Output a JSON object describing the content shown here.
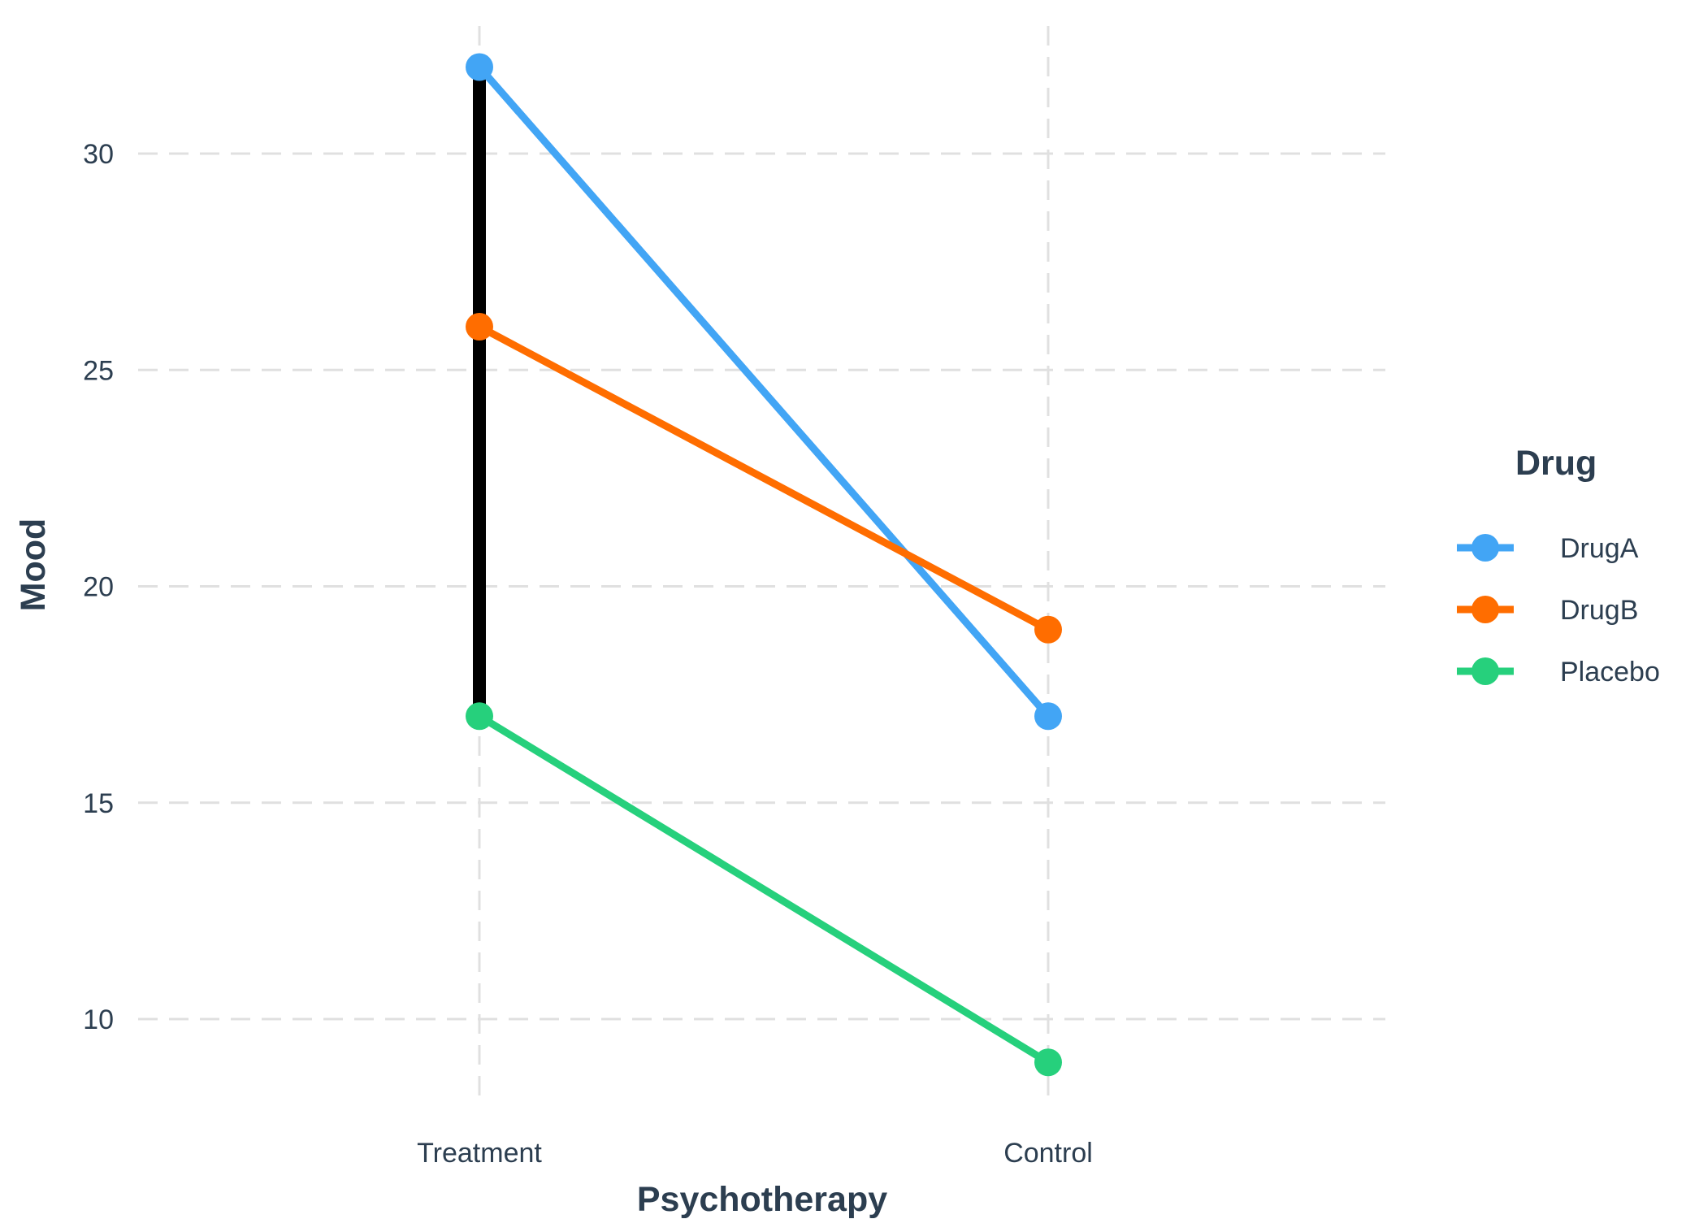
{
  "chart_data": {
    "type": "line",
    "xlabel": "Psychotherapy",
    "ylabel": "Mood",
    "categories": [
      "Treatment",
      "Control"
    ],
    "ylim": [
      7.5,
      33
    ],
    "yticks": [
      10,
      15,
      20,
      25,
      30
    ],
    "grid": true,
    "legend": {
      "title": "Drug",
      "position": "right"
    },
    "series": [
      {
        "name": "DrugA",
        "color": "#42a5f5",
        "values": [
          32,
          17
        ]
      },
      {
        "name": "DrugB",
        "color": "#ff6d00",
        "values": [
          26,
          19
        ]
      },
      {
        "name": "Placebo",
        "color": "#26d07c",
        "values": [
          17,
          9
        ]
      }
    ],
    "annotations": [
      {
        "type": "vertical-segment",
        "category": "Treatment",
        "from": 17,
        "to": 32,
        "color": "#000000"
      }
    ]
  }
}
